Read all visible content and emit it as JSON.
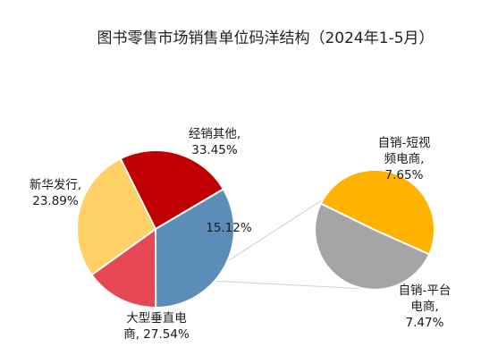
{
  "chart_data": {
    "type": "pie",
    "subtype": "pie-of-pie",
    "title": "图书零售市场销售单位码洋结构（2024年1-5月）",
    "slices": [
      {
        "name": "经销其他",
        "value": 33.45,
        "label_lines": [
          "经销其他,",
          "33.45%"
        ],
        "color": "#5B8DB8"
      },
      {
        "name": "",
        "value": 15.12,
        "label_lines": [
          "15.12%"
        ],
        "color": "#E54853",
        "exploded_to_secondary": true
      },
      {
        "name": "大型垂直电商",
        "value": 27.54,
        "label_lines": [
          "大型垂直电",
          "商, 27.54%"
        ],
        "color": "#FFD066"
      },
      {
        "name": "新华发行",
        "value": 23.89,
        "label_lines": [
          "新华发行,",
          "23.89%"
        ],
        "color": "#C00000"
      }
    ],
    "secondary_slices": [
      {
        "name": "自销-短视频电商",
        "value": 7.65,
        "label_lines": [
          "自销-短视",
          "频电商,",
          "7.65%"
        ],
        "color": "#A5A5A5"
      },
      {
        "name": "自销-平台电商",
        "value": 7.47,
        "label_lines": [
          "自销-平台",
          "电商,",
          "7.47%"
        ],
        "color": "#FFB300"
      }
    ],
    "legend": "none"
  }
}
